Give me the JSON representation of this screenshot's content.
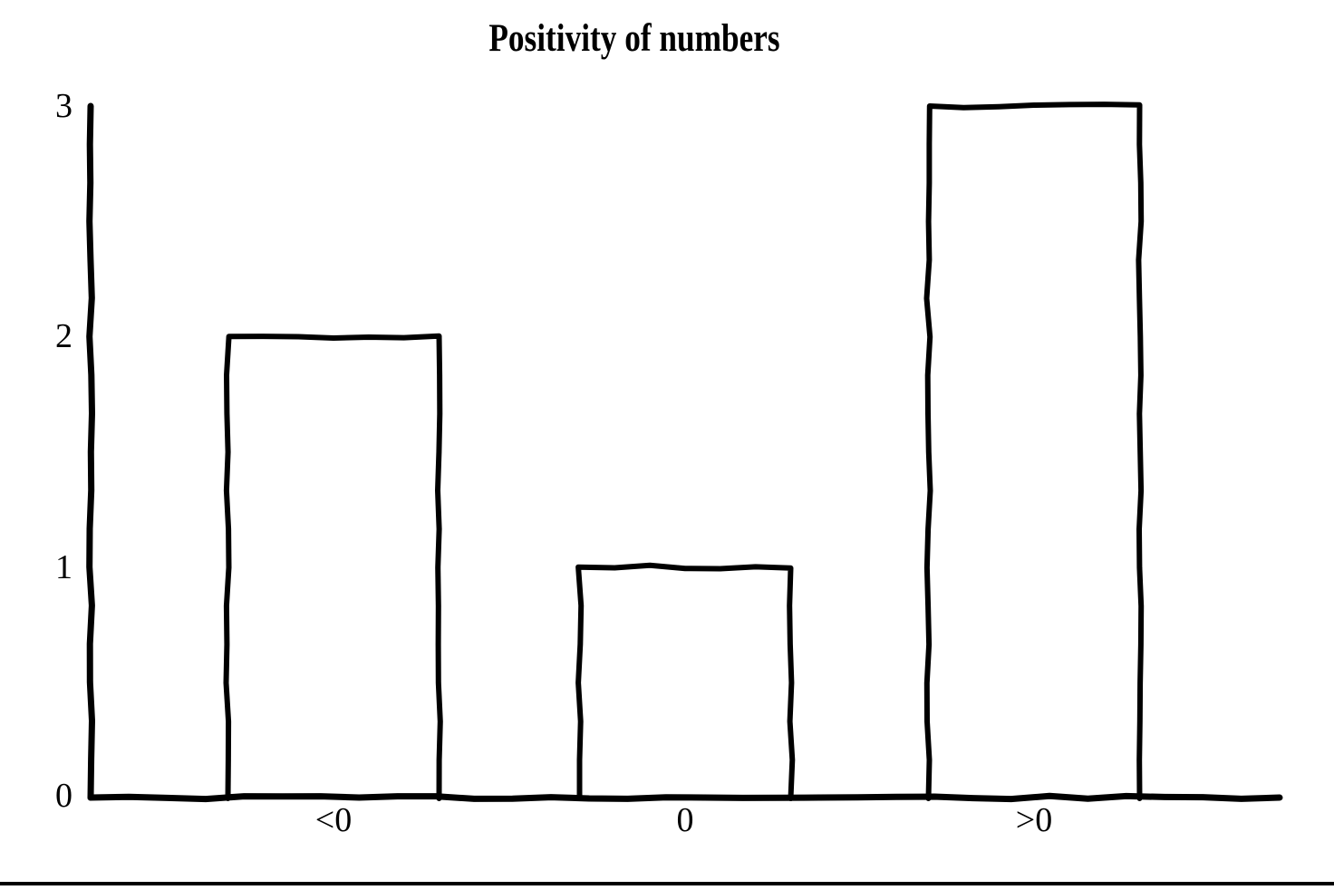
{
  "figure": {
    "background": "#ffffff",
    "ink": "#000000"
  },
  "chart_data": {
    "type": "bar",
    "title": "Positivity of numbers",
    "categories": [
      "<0",
      "0",
      ">0"
    ],
    "values": [
      2,
      1,
      3
    ],
    "ytick_labels": [
      "0",
      "1",
      "2",
      "3"
    ],
    "ylim": [
      0,
      3
    ],
    "xlabel": "",
    "ylabel": "",
    "grid": false,
    "legend": "none",
    "bar_fill": "none",
    "stroke_style": "hand-drawn"
  }
}
